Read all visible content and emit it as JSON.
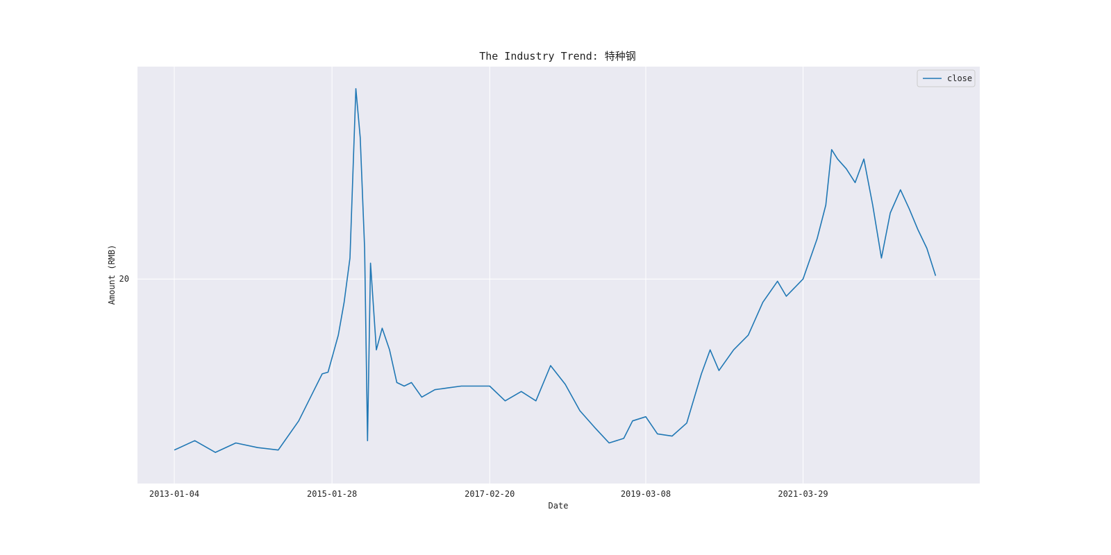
{
  "chart_data": {
    "type": "line",
    "title": "The Industry Trend: 特种钢",
    "xlabel": "Date",
    "ylabel": "Amount (RMB)",
    "yscale": "log",
    "grid": true,
    "background_color": "#eaeaf2",
    "grid_color": "#ffffff",
    "line_color": "#1f77b4",
    "legend": {
      "position": "top-right",
      "entries": [
        "close"
      ]
    },
    "x_ticks": [
      "2013-01-04",
      "2015-01-28",
      "2017-02-20",
      "2019-03-08",
      "2021-03-29"
    ],
    "y_ticks": [
      {
        "value": 20,
        "label": "20"
      }
    ],
    "xlim": [
      "2012-07-12",
      "2023-07-22"
    ],
    "ylim": [
      7.9,
      52.5
    ],
    "series": [
      {
        "name": "close",
        "x": [
          "2013-01-04",
          "2013-04-12",
          "2013-07-19",
          "2013-10-25",
          "2014-02-07",
          "2014-05-16",
          "2014-08-22",
          "2014-10-31",
          "2014-12-12",
          "2015-01-09",
          "2015-02-27",
          "2015-03-27",
          "2015-04-24",
          "2015-05-22",
          "2015-06-12",
          "2015-07-03",
          "2015-07-17",
          "2015-07-31",
          "2015-08-28",
          "2015-09-25",
          "2015-10-30",
          "2015-12-04",
          "2016-01-08",
          "2016-02-12",
          "2016-04-01",
          "2016-06-03",
          "2016-08-05",
          "2016-10-07",
          "2016-12-02",
          "2017-02-20",
          "2017-05-05",
          "2017-07-21",
          "2017-09-29",
          "2017-12-08",
          "2018-02-16",
          "2018-04-27",
          "2018-07-06",
          "2018-09-14",
          "2018-11-23",
          "2019-01-04",
          "2019-03-08",
          "2019-05-03",
          "2019-07-12",
          "2019-09-20",
          "2019-11-29",
          "2020-01-10",
          "2020-02-21",
          "2020-05-01",
          "2020-07-10",
          "2020-09-18",
          "2020-11-27",
          "2021-01-08",
          "2021-03-29",
          "2021-06-04",
          "2021-07-16",
          "2021-08-13",
          "2021-09-10",
          "2021-10-22",
          "2021-12-03",
          "2022-01-14",
          "2022-02-25",
          "2022-04-08",
          "2022-05-20",
          "2022-07-08",
          "2022-08-19",
          "2022-09-30",
          "2022-11-11",
          "2022-12-23"
        ],
        "values": [
          9.2,
          9.6,
          9.1,
          9.5,
          9.3,
          9.2,
          10.5,
          12.0,
          13.0,
          13.1,
          15.5,
          18.0,
          22.0,
          47.5,
          38.0,
          23.0,
          9.6,
          21.5,
          14.5,
          16.0,
          14.5,
          12.5,
          12.3,
          12.5,
          11.7,
          12.1,
          12.2,
          12.3,
          12.3,
          12.3,
          11.5,
          12.0,
          11.5,
          13.5,
          12.4,
          11.0,
          10.2,
          9.5,
          9.7,
          10.5,
          10.7,
          9.9,
          9.8,
          10.4,
          13.0,
          14.5,
          13.2,
          14.5,
          15.5,
          18.0,
          19.8,
          18.5,
          20.0,
          24.0,
          28.0,
          36.0,
          34.5,
          33.0,
          31.0,
          34.5,
          28.0,
          22.0,
          27.0,
          30.0,
          27.5,
          25.0,
          23.0,
          20.3
        ]
      }
    ]
  }
}
